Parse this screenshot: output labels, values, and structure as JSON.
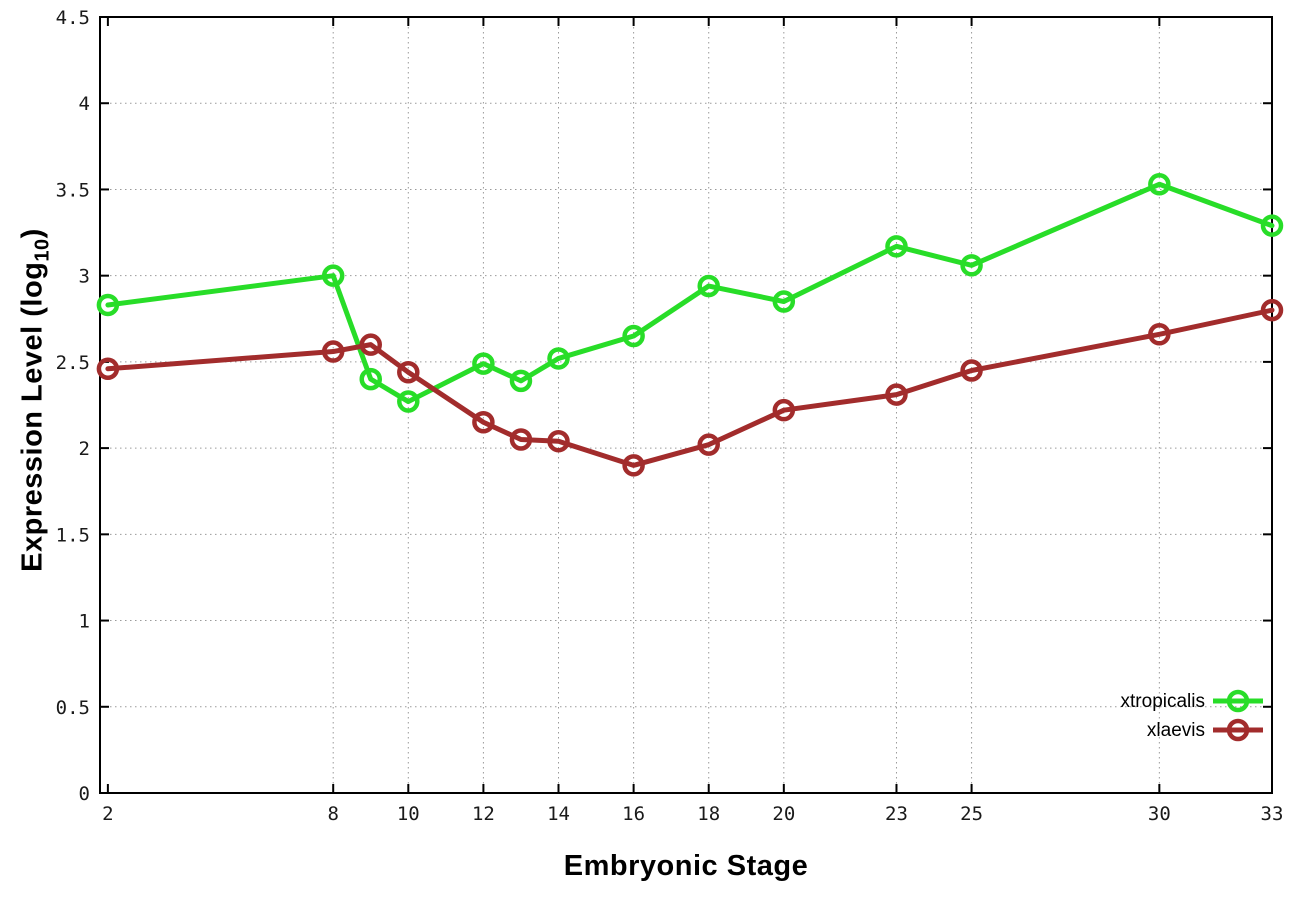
{
  "labels": {
    "xlabel": "Embryonic Stage",
    "ylabel_main": "Expression Level (log",
    "ylabel_sub": "10",
    "ylabel_close": ")"
  },
  "chart_data": {
    "type": "line",
    "title": "",
    "xlabel": "Embryonic Stage",
    "ylabel": "Expression Level (log10)",
    "x": [
      2,
      8,
      9,
      10,
      12,
      13,
      14,
      16,
      18,
      20,
      23,
      25,
      30,
      33
    ],
    "series": [
      {
        "name": "xtropicalis",
        "color": "#28dd28",
        "values": [
          2.83,
          3.0,
          2.4,
          2.27,
          2.49,
          2.39,
          2.52,
          2.65,
          2.94,
          2.85,
          3.17,
          3.06,
          3.53,
          3.29
        ]
      },
      {
        "name": "xlaevis",
        "color": "#a22c2c",
        "values": [
          2.46,
          2.56,
          2.6,
          2.44,
          2.15,
          2.05,
          2.04,
          1.9,
          2.02,
          2.22,
          2.31,
          2.45,
          2.66,
          2.8
        ]
      }
    ],
    "x_ticks": [
      2,
      8,
      10,
      12,
      14,
      16,
      18,
      20,
      23,
      25,
      30,
      33
    ],
    "y_ticks": [
      0,
      0.5,
      1,
      1.5,
      2,
      2.5,
      3,
      3.5,
      4,
      4.5
    ],
    "xlim": [
      2,
      33
    ],
    "ylim": [
      0,
      4.5
    ],
    "grid": true,
    "marker": "open-circle",
    "legend_position": "inside-bottom-right",
    "grid_color": "#9a9a9a",
    "axis_color": "#000000",
    "tick_text_color": "#1a1a1a"
  }
}
